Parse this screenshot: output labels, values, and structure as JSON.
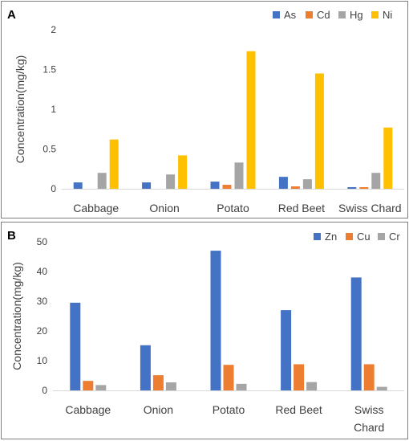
{
  "chart_data": [
    {
      "panel_label": "A",
      "type": "bar",
      "categories": [
        "Cabbage",
        "Onion",
        "Potato",
        "Red Beet",
        "Swiss Chard"
      ],
      "series": [
        {
          "name": "As",
          "color": "#4472C4",
          "values": [
            0.08,
            0.08,
            0.09,
            0.15,
            0.02
          ]
        },
        {
          "name": "Cd",
          "color": "#ED7D31",
          "values": [
            0.0,
            0.0,
            0.05,
            0.03,
            0.02
          ]
        },
        {
          "name": "Hg",
          "color": "#A5A5A5",
          "values": [
            0.2,
            0.18,
            0.33,
            0.12,
            0.2
          ]
        },
        {
          "name": "Ni",
          "color": "#FFC000",
          "values": [
            0.62,
            0.42,
            1.73,
            1.45,
            0.77
          ]
        }
      ],
      "ylabel": "Concentration(mg/kg)",
      "xlabel": "",
      "ylim": [
        0,
        2
      ],
      "yticks": [
        "0",
        "0.5",
        "1",
        "1.5",
        "2"
      ],
      "grid": false,
      "legend": "top-right"
    },
    {
      "panel_label": "B",
      "type": "bar",
      "categories": [
        "Cabbage",
        "Onion",
        "Potato",
        "Red Beet",
        "Swiss Chard"
      ],
      "category_lines": [
        [
          "Cabbage"
        ],
        [
          "Onion"
        ],
        [
          "Potato"
        ],
        [
          "Red Beet"
        ],
        [
          "Swiss",
          "Chard"
        ]
      ],
      "series": [
        {
          "name": "Zn",
          "color": "#4472C4",
          "values": [
            29.5,
            15.2,
            47.0,
            27.0,
            38.0
          ]
        },
        {
          "name": "Cu",
          "color": "#ED7D31",
          "values": [
            3.2,
            5.1,
            8.6,
            8.8,
            8.8
          ]
        },
        {
          "name": "Cr",
          "color": "#A5A5A5",
          "values": [
            1.8,
            2.7,
            2.2,
            2.8,
            1.2
          ]
        }
      ],
      "ylabel": "Concentration(mg/kg)",
      "xlabel": "",
      "ylim": [
        0,
        50
      ],
      "yticks": [
        "0",
        "10",
        "20",
        "30",
        "40",
        "50"
      ],
      "grid": false,
      "legend": "top-right"
    }
  ]
}
